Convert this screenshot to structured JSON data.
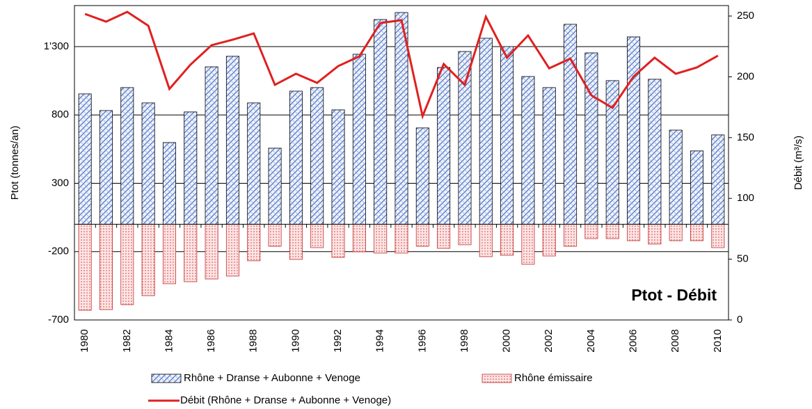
{
  "chart_data": {
    "type": "bar_line",
    "title": "Ptot - Débit",
    "y_label": "Ptot (tonnes/an)",
    "y2_label": "Débit (m³/s)",
    "categories": [
      "1980",
      null,
      "1982",
      null,
      "1984",
      null,
      "1986",
      null,
      "1988",
      null,
      "1990",
      null,
      "1992",
      null,
      "1994",
      null,
      "1996",
      null,
      "1998",
      null,
      "2000",
      null,
      "2002",
      null,
      "2004",
      null,
      "2006",
      null,
      "2008",
      null,
      "2010"
    ],
    "series": [
      {
        "name": "Rhône + Dranse + Aubonne + Venoge",
        "color": "#4a6fc4",
        "type": "bar",
        "values": [
          954,
          832,
          1000,
          888,
          598,
          822,
          1152,
          1229,
          888,
          557,
          974,
          1000,
          837,
          1244,
          1498,
          1549,
          705,
          1147,
          1264,
          1361,
          1300,
          1081,
          1000,
          1463,
          1254,
          1051,
          1371,
          1061,
          689,
          537,
          654
        ]
      },
      {
        "name": "Rhône émissaire",
        "color": "#e06060",
        "type": "bar",
        "values": [
          -629,
          -624,
          -588,
          -522,
          -435,
          -420,
          -400,
          -379,
          -267,
          -161,
          -257,
          -171,
          -242,
          -201,
          -211,
          -211,
          -161,
          -176,
          -150,
          -237,
          -227,
          -293,
          -232,
          -161,
          -105,
          -105,
          -120,
          -145,
          -120,
          -120,
          -171
        ]
      },
      {
        "name": "Débit (Rhône + Dranse + Aubonne + Venoge)",
        "color": "#e02020",
        "type": "line",
        "axis": "y2",
        "values": [
          251.7,
          245.4,
          253.4,
          242,
          190,
          210,
          226,
          230.5,
          235.7,
          193.4,
          202.5,
          195,
          208.8,
          216.8,
          244.3,
          246.6,
          167.6,
          210.5,
          193.4,
          249.4,
          215.7,
          234,
          207,
          215,
          184.8,
          174.5,
          200.2,
          215.7,
          202.5,
          207.7,
          217.4
        ]
      }
    ],
    "ylim": [
      -700,
      1600
    ],
    "yticks": [
      -700,
      -200,
      300,
      800,
      {
        "value": 1300,
        "label": "1'300"
      }
    ],
    "y2lim": [
      0,
      258.6
    ],
    "y2ticks": [
      0,
      50,
      100,
      150,
      200,
      250
    ],
    "grid": true
  }
}
